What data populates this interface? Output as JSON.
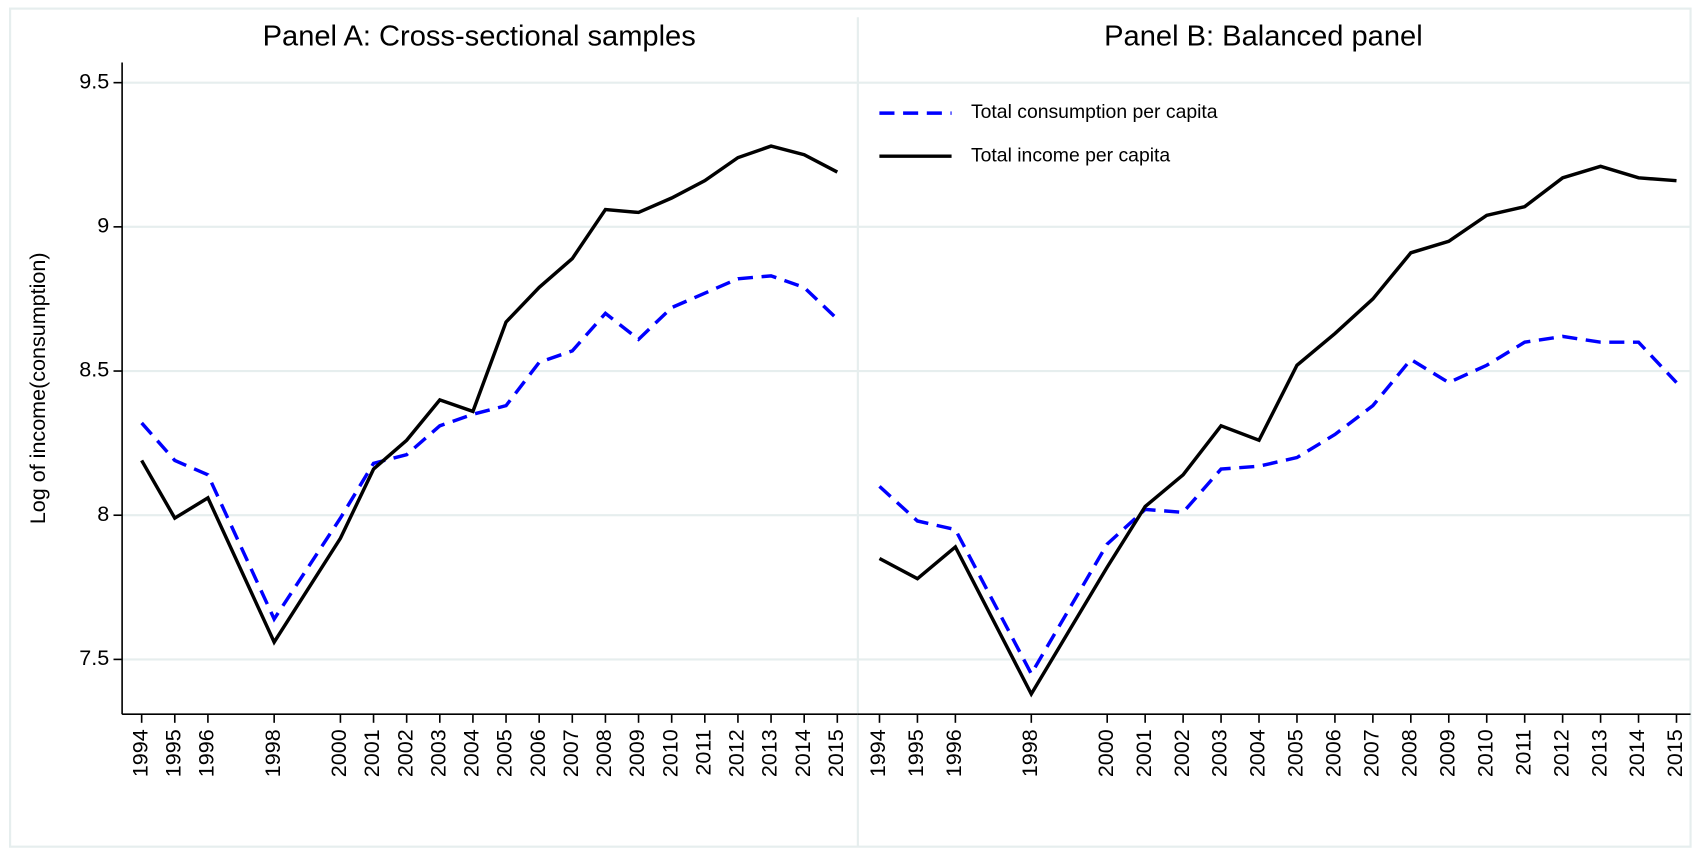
{
  "chart_data": [
    {
      "type": "line",
      "title": "Panel A: Cross-sectional samples",
      "ylabel": "Log of income(consumption)",
      "x": [
        1994,
        1995,
        1996,
        1998,
        2000,
        2001,
        2002,
        2003,
        2004,
        2005,
        2006,
        2007,
        2008,
        2009,
        2010,
        2011,
        2012,
        2013,
        2014,
        2015
      ],
      "xticks": [
        1994,
        1995,
        1996,
        1998,
        2000,
        2001,
        2002,
        2003,
        2004,
        2005,
        2006,
        2007,
        2008,
        2009,
        2010,
        2011,
        2012,
        2013,
        2014,
        2015
      ],
      "xlim": [
        1993.41,
        2015.62
      ],
      "ylim": [
        7.31,
        9.57
      ],
      "yticks": [
        7.5,
        8,
        8.5,
        9,
        9.5
      ],
      "grid": true,
      "series": [
        {
          "name": "Total consumption per capita",
          "color": "#0000ff",
          "dashed": true,
          "values": [
            8.32,
            8.19,
            8.14,
            7.64,
            7.99,
            8.18,
            8.21,
            8.31,
            8.35,
            8.38,
            8.53,
            8.57,
            8.7,
            8.61,
            8.72,
            8.77,
            8.82,
            8.83,
            8.79,
            8.68
          ]
        },
        {
          "name": "Total income per capita",
          "color": "#000000",
          "dashed": false,
          "values": [
            8.19,
            7.99,
            8.06,
            7.56,
            7.92,
            8.16,
            8.26,
            8.4,
            8.36,
            8.67,
            8.79,
            8.89,
            9.06,
            9.05,
            9.1,
            9.16,
            9.24,
            9.28,
            9.25,
            9.19
          ]
        }
      ]
    },
    {
      "type": "line",
      "title": "Panel B: Balanced panel",
      "legend": "upper left",
      "x": [
        1994,
        1995,
        1996,
        1998,
        2000,
        2001,
        2002,
        2003,
        2004,
        2005,
        2006,
        2007,
        2008,
        2009,
        2010,
        2011,
        2012,
        2013,
        2014,
        2015
      ],
      "xticks": [
        1994,
        1995,
        1996,
        1998,
        2000,
        2001,
        2002,
        2003,
        2004,
        2005,
        2006,
        2007,
        2008,
        2009,
        2010,
        2011,
        2012,
        2013,
        2014,
        2015
      ],
      "xlim": [
        1993.43,
        2015.37
      ],
      "ylim": [
        7.31,
        9.57
      ],
      "yticks": [
        7.5,
        8,
        8.5,
        9,
        9.5
      ],
      "grid": true,
      "series": [
        {
          "name": "Total consumption per capita",
          "color": "#0000ff",
          "dashed": true,
          "values": [
            8.1,
            7.98,
            7.95,
            7.45,
            7.9,
            8.02,
            8.01,
            8.16,
            8.17,
            8.2,
            8.28,
            8.38,
            8.54,
            8.46,
            8.52,
            8.6,
            8.62,
            8.6,
            8.6,
            8.46
          ]
        },
        {
          "name": "Total income per capita",
          "color": "#000000",
          "dashed": false,
          "values": [
            7.85,
            7.78,
            7.89,
            7.38,
            7.82,
            8.03,
            8.14,
            8.31,
            8.26,
            8.52,
            8.63,
            8.75,
            8.91,
            8.95,
            9.04,
            9.07,
            9.17,
            9.21,
            9.17,
            9.16
          ]
        }
      ]
    }
  ]
}
